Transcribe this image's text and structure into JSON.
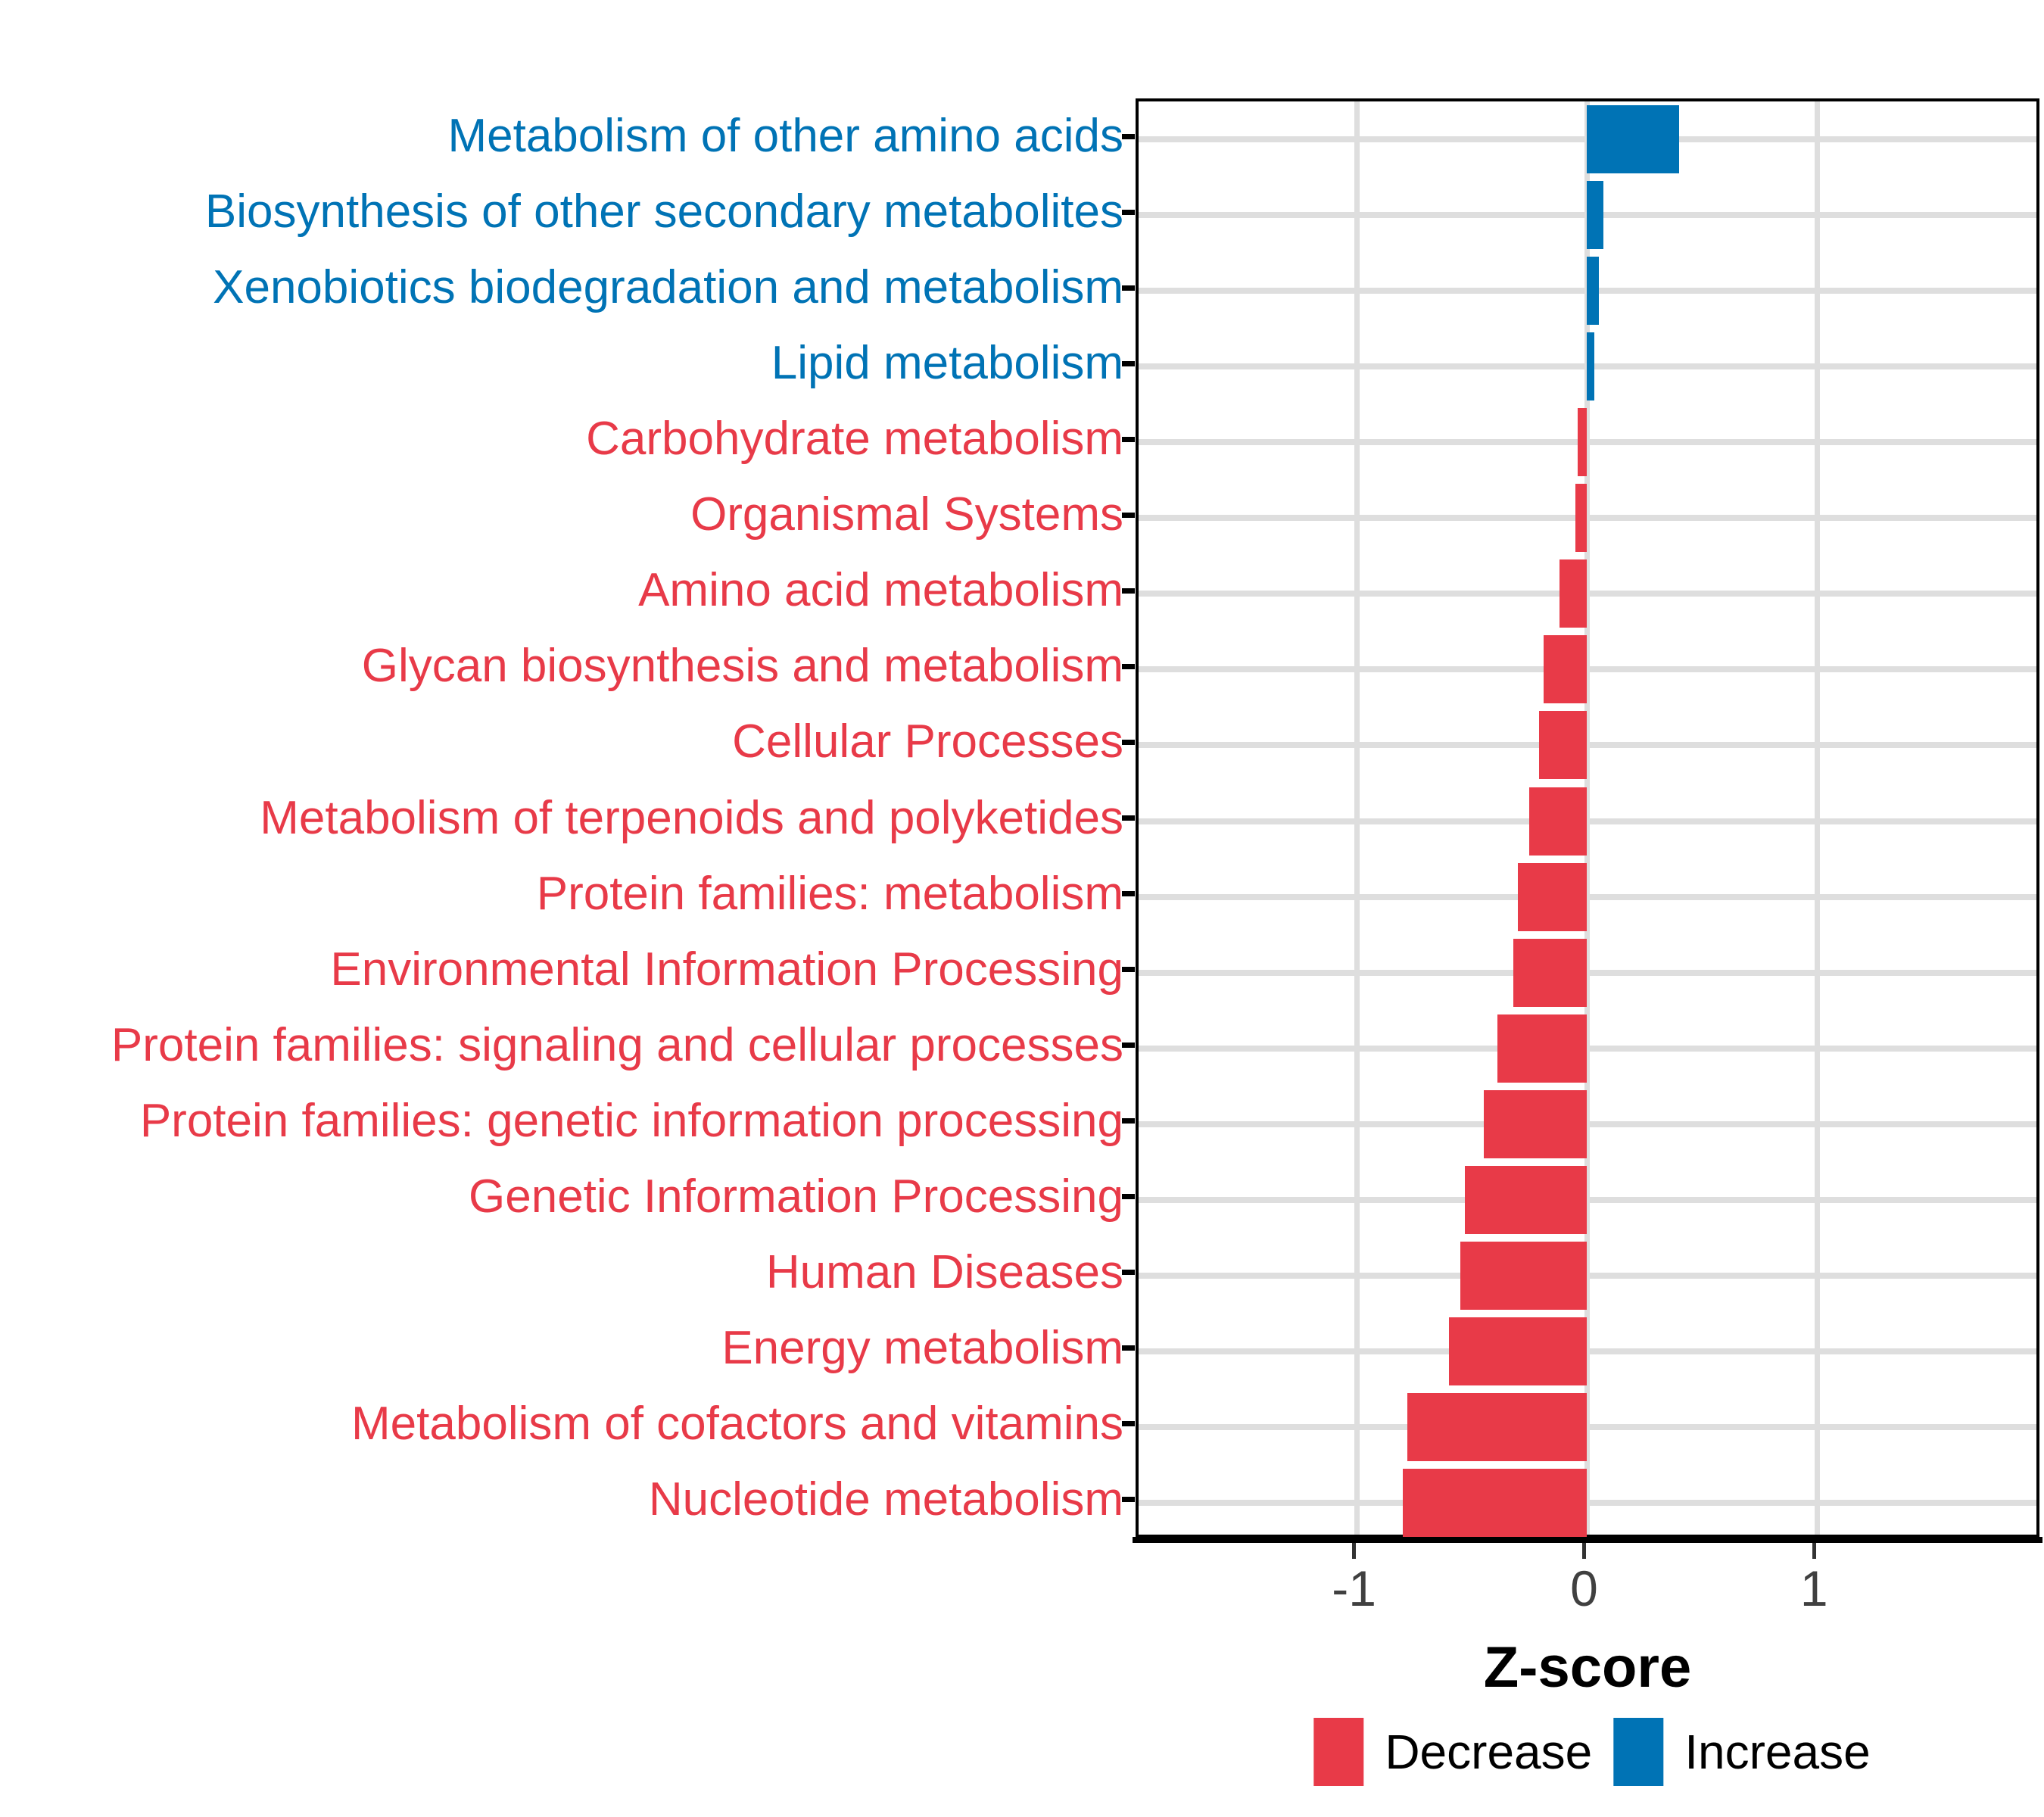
{
  "figure": {
    "background": "#FFFFFF"
  },
  "chart_data": {
    "type": "bar",
    "orientation": "horizontal",
    "title": "",
    "xlabel": "Z-score",
    "ylabel": "",
    "xlim": [
      -1.95,
      1.98
    ],
    "grid": true,
    "legend_position": "bottom",
    "xticks": [
      {
        "value": -1,
        "label": "-1"
      },
      {
        "value": 0,
        "label": "0"
      },
      {
        "value": 1,
        "label": "1"
      }
    ],
    "categories": [
      "Metabolism of other amino acids",
      "Biosynthesis of other secondary metabolites",
      "Xenobiotics biodegradation and metabolism",
      "Lipid metabolism",
      "Carbohydrate metabolism",
      "Organismal Systems",
      "Amino acid metabolism",
      "Glycan biosynthesis and metabolism",
      "Cellular Processes",
      "Metabolism of terpenoids and polyketides",
      "Protein families: metabolism",
      "Environmental Information Processing",
      "Protein families: signaling and cellular processes",
      "Protein families: genetic information processing",
      "Genetic Information Processing",
      "Human Diseases",
      "Energy metabolism",
      "Metabolism of cofactors and vitamins",
      "Nucleotide metabolism"
    ],
    "values": [
      0.4,
      0.07,
      0.05,
      0.03,
      -0.04,
      -0.05,
      -0.12,
      -0.19,
      -0.21,
      -0.25,
      -0.3,
      -0.32,
      -0.39,
      -0.45,
      -0.53,
      -0.55,
      -0.6,
      -0.78,
      -0.8
    ],
    "groups": [
      "Increase",
      "Increase",
      "Increase",
      "Increase",
      "Decrease",
      "Decrease",
      "Decrease",
      "Decrease",
      "Decrease",
      "Decrease",
      "Decrease",
      "Decrease",
      "Decrease",
      "Decrease",
      "Decrease",
      "Decrease",
      "Decrease",
      "Decrease",
      "Decrease"
    ],
    "colors": {
      "Decrease": "#E83A48",
      "Increase": "#0073B5"
    }
  },
  "legend": {
    "items": [
      {
        "label": "Decrease",
        "color": "#E83A48"
      },
      {
        "label": "Increase",
        "color": "#0073B5"
      }
    ]
  },
  "axis": {
    "line_color": "#000000",
    "tick_color": "#333333",
    "tick_label_color": "#404040",
    "grid_color": "#DEDEDE"
  }
}
